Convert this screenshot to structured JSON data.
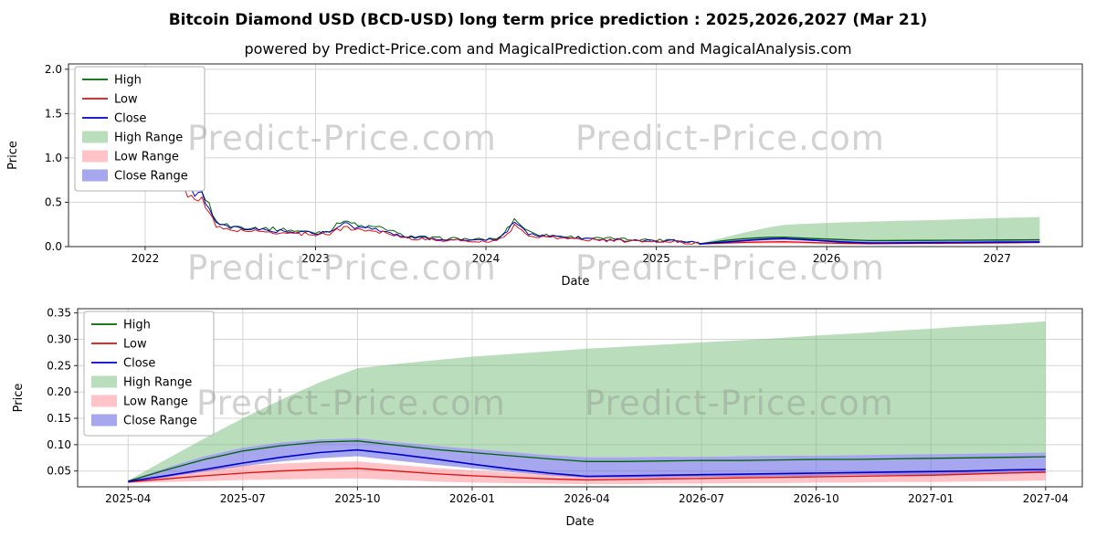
{
  "page": {
    "title": "Bitcoin Diamond USD (BCD-USD) long term price prediction : 2025,2026,2027 (Mar 21)",
    "subtitle": "powered by Predict-Price.com and MagicalPrediction.com and MagicalAnalysis.com",
    "watermark": "Predict-Price.com",
    "background": "#ffffff"
  },
  "colors": {
    "high": "#006400",
    "low": "#e01010",
    "close": "#0000cd",
    "high_range": "rgba(118,190,120,0.5)",
    "low_range": "rgba(255,145,155,0.55)",
    "close_range": "rgba(95,95,225,0.55)",
    "grid": "#d4d4d4",
    "frame": "#262626",
    "tick_text": "#000000",
    "watermark": "#8a8a8a"
  },
  "chart_data": [
    {
      "type": "line",
      "title": "",
      "xlabel": "Date",
      "ylabel": "Price",
      "xlim": [
        2021.55,
        2027.5
      ],
      "ylim": [
        0,
        2.06
      ],
      "grid": true,
      "legend_position": "upper-left",
      "legend": [
        {
          "label": "High",
          "swatch": "line",
          "color": "high"
        },
        {
          "label": "Low",
          "swatch": "line",
          "color": "low"
        },
        {
          "label": "Close",
          "swatch": "line",
          "color": "close"
        },
        {
          "label": "High Range",
          "swatch": "patch",
          "color": "high_range"
        },
        {
          "label": "Low Range",
          "swatch": "patch",
          "color": "low_range"
        },
        {
          "label": "Close Range",
          "swatch": "patch",
          "color": "close_range"
        }
      ],
      "yticks": [
        {
          "v": 0,
          "label": "0.0"
        },
        {
          "v": 0.5,
          "label": "0.5"
        },
        {
          "v": 1.0,
          "label": "1.0"
        },
        {
          "v": 1.5,
          "label": "1.5"
        },
        {
          "v": 2.0,
          "label": "2.0"
        }
      ],
      "xticks": [
        {
          "v": 2022,
          "label": "2022"
        },
        {
          "v": 2023,
          "label": "2023"
        },
        {
          "v": 2024,
          "label": "2024"
        },
        {
          "v": 2025,
          "label": "2025"
        },
        {
          "v": 2026,
          "label": "2026"
        },
        {
          "v": 2027,
          "label": "2027"
        }
      ],
      "series": {
        "hist": {
          "x": [
            2022.0,
            2022.083,
            2022.167,
            2022.25,
            2022.333,
            2022.417,
            2022.5,
            2022.583,
            2022.667,
            2022.75,
            2022.833,
            2022.917,
            2023.0,
            2023.083,
            2023.167,
            2023.25,
            2023.333,
            2023.417,
            2023.5,
            2023.583,
            2023.667,
            2023.75,
            2023.833,
            2023.917,
            2024.0,
            2024.083,
            2024.167,
            2024.25,
            2024.333,
            2024.417,
            2024.5,
            2024.583,
            2024.667,
            2024.75,
            2024.833,
            2024.917,
            2025.0,
            2025.083,
            2025.167,
            2025.25
          ],
          "high": [
            1.1,
            1.8,
            1.05,
            0.68,
            0.65,
            0.28,
            0.23,
            0.22,
            0.21,
            0.2,
            0.19,
            0.17,
            0.16,
            0.18,
            0.31,
            0.23,
            0.22,
            0.2,
            0.13,
            0.11,
            0.1,
            0.09,
            0.09,
            0.08,
            0.08,
            0.1,
            0.31,
            0.17,
            0.13,
            0.12,
            0.11,
            0.1,
            0.09,
            0.09,
            0.08,
            0.08,
            0.07,
            0.08,
            0.06,
            0.05
          ],
          "low": [
            0.9,
            1.58,
            0.85,
            0.56,
            0.55,
            0.22,
            0.19,
            0.18,
            0.17,
            0.16,
            0.155,
            0.145,
            0.14,
            0.145,
            0.22,
            0.19,
            0.18,
            0.16,
            0.11,
            0.09,
            0.08,
            0.07,
            0.07,
            0.06,
            0.06,
            0.08,
            0.23,
            0.13,
            0.11,
            0.1,
            0.09,
            0.08,
            0.07,
            0.07,
            0.06,
            0.06,
            0.055,
            0.06,
            0.045,
            0.035
          ],
          "close": [
            1.0,
            1.72,
            0.95,
            0.62,
            0.6,
            0.25,
            0.21,
            0.2,
            0.19,
            0.18,
            0.17,
            0.16,
            0.15,
            0.16,
            0.26,
            0.21,
            0.2,
            0.18,
            0.12,
            0.1,
            0.09,
            0.08,
            0.08,
            0.07,
            0.07,
            0.09,
            0.27,
            0.15,
            0.12,
            0.11,
            0.1,
            0.09,
            0.08,
            0.08,
            0.07,
            0.07,
            0.06,
            0.07,
            0.05,
            0.04
          ]
        },
        "pred": {
          "x": [
            2025.25,
            2025.333,
            2025.417,
            2025.5,
            2025.583,
            2025.667,
            2025.75,
            2025.833,
            2025.917,
            2026.0,
            2026.083,
            2026.167,
            2026.25,
            2026.333,
            2026.417,
            2026.5,
            2026.583,
            2026.667,
            2026.75,
            2026.833,
            2026.917,
            2027.0,
            2027.083,
            2027.167,
            2027.25
          ],
          "high": [
            0.031,
            0.052,
            0.072,
            0.088,
            0.098,
            0.105,
            0.107,
            0.099,
            0.091,
            0.085,
            0.079,
            0.073,
            0.068,
            0.068,
            0.069,
            0.07,
            0.07,
            0.071,
            0.072,
            0.072,
            0.073,
            0.074,
            0.075,
            0.076,
            0.077
          ],
          "low": [
            0.029,
            0.035,
            0.041,
            0.046,
            0.05,
            0.053,
            0.055,
            0.05,
            0.045,
            0.041,
            0.038,
            0.035,
            0.033,
            0.034,
            0.035,
            0.036,
            0.037,
            0.038,
            0.039,
            0.04,
            0.041,
            0.042,
            0.044,
            0.046,
            0.048
          ],
          "close": [
            0.03,
            0.041,
            0.053,
            0.065,
            0.076,
            0.085,
            0.09,
            0.082,
            0.073,
            0.063,
            0.054,
            0.046,
            0.04,
            0.041,
            0.042,
            0.043,
            0.044,
            0.045,
            0.046,
            0.047,
            0.048,
            0.049,
            0.05,
            0.052,
            0.053
          ],
          "high_top": [
            0.032,
            0.072,
            0.112,
            0.15,
            0.185,
            0.218,
            0.245,
            0.253,
            0.26,
            0.267,
            0.272,
            0.277,
            0.282,
            0.286,
            0.29,
            0.294,
            0.298,
            0.302,
            0.307,
            0.311,
            0.316,
            0.32,
            0.325,
            0.329,
            0.334
          ],
          "close_top": [
            0.032,
            0.056,
            0.078,
            0.094,
            0.104,
            0.11,
            0.112,
            0.105,
            0.098,
            0.092,
            0.086,
            0.08,
            0.076,
            0.076,
            0.077,
            0.077,
            0.078,
            0.079,
            0.079,
            0.08,
            0.081,
            0.082,
            0.083,
            0.084,
            0.085
          ],
          "close_bottom": [
            0.028,
            0.038,
            0.049,
            0.059,
            0.068,
            0.074,
            0.078,
            0.07,
            0.062,
            0.055,
            0.048,
            0.042,
            0.037,
            0.037,
            0.038,
            0.039,
            0.039,
            0.04,
            0.041,
            0.042,
            0.042,
            0.043,
            0.044,
            0.045,
            0.046
          ],
          "low_top": [
            0.031,
            0.043,
            0.053,
            0.06,
            0.064,
            0.067,
            0.068,
            0.062,
            0.056,
            0.051,
            0.047,
            0.044,
            0.041,
            0.041,
            0.042,
            0.043,
            0.044,
            0.045,
            0.045,
            0.046,
            0.047,
            0.048,
            0.049,
            0.05,
            0.051
          ],
          "low_bottom": [
            0.027,
            0.029,
            0.031,
            0.033,
            0.034,
            0.035,
            0.036,
            0.033,
            0.03,
            0.028,
            0.027,
            0.026,
            0.025,
            0.025,
            0.026,
            0.026,
            0.027,
            0.027,
            0.028,
            0.028,
            0.029,
            0.029,
            0.03,
            0.031,
            0.032
          ]
        }
      }
    },
    {
      "type": "line",
      "title": "",
      "xlabel": "Date",
      "ylabel": "Price",
      "xlim": [
        2025.14,
        2027.33
      ],
      "ylim": [
        0.02,
        0.358
      ],
      "grid": true,
      "legend_position": "upper-left",
      "legend": [
        {
          "label": "High",
          "swatch": "line",
          "color": "high"
        },
        {
          "label": "Low",
          "swatch": "line",
          "color": "low"
        },
        {
          "label": "Close",
          "swatch": "line",
          "color": "close"
        },
        {
          "label": "High Range",
          "swatch": "patch",
          "color": "high_range"
        },
        {
          "label": "Low Range",
          "swatch": "patch",
          "color": "low_range"
        },
        {
          "label": "Close Range",
          "swatch": "patch",
          "color": "close_range"
        }
      ],
      "yticks": [
        {
          "v": 0.05,
          "label": "0.05"
        },
        {
          "v": 0.1,
          "label": "0.10"
        },
        {
          "v": 0.15,
          "label": "0.15"
        },
        {
          "v": 0.2,
          "label": "0.20"
        },
        {
          "v": 0.25,
          "label": "0.25"
        },
        {
          "v": 0.3,
          "label": "0.30"
        },
        {
          "v": 0.35,
          "label": "0.35"
        }
      ],
      "xticks": [
        {
          "v": 2025.25,
          "label": "2025-04"
        },
        {
          "v": 2025.5,
          "label": "2025-07"
        },
        {
          "v": 2025.75,
          "label": "2025-10"
        },
        {
          "v": 2026.0,
          "label": "2026-01"
        },
        {
          "v": 2026.25,
          "label": "2026-04"
        },
        {
          "v": 2026.5,
          "label": "2026-07"
        },
        {
          "v": 2026.75,
          "label": "2026-10"
        },
        {
          "v": 2027.0,
          "label": "2027-01"
        },
        {
          "v": 2027.25,
          "label": "2027-04"
        }
      ],
      "series": {
        "pred": {
          "x": [
            2025.25,
            2025.333,
            2025.417,
            2025.5,
            2025.583,
            2025.667,
            2025.75,
            2025.833,
            2025.917,
            2026.0,
            2026.083,
            2026.167,
            2026.25,
            2026.333,
            2026.417,
            2026.5,
            2026.583,
            2026.667,
            2026.75,
            2026.833,
            2026.917,
            2027.0,
            2027.083,
            2027.167,
            2027.25
          ],
          "high": [
            0.031,
            0.052,
            0.072,
            0.088,
            0.098,
            0.105,
            0.107,
            0.099,
            0.091,
            0.085,
            0.079,
            0.073,
            0.068,
            0.068,
            0.069,
            0.07,
            0.07,
            0.071,
            0.072,
            0.072,
            0.073,
            0.074,
            0.075,
            0.076,
            0.077
          ],
          "low": [
            0.029,
            0.035,
            0.041,
            0.046,
            0.05,
            0.053,
            0.055,
            0.05,
            0.045,
            0.041,
            0.038,
            0.035,
            0.033,
            0.034,
            0.035,
            0.036,
            0.037,
            0.038,
            0.039,
            0.04,
            0.041,
            0.042,
            0.044,
            0.046,
            0.048
          ],
          "close": [
            0.03,
            0.041,
            0.053,
            0.065,
            0.076,
            0.085,
            0.09,
            0.082,
            0.073,
            0.063,
            0.054,
            0.046,
            0.04,
            0.041,
            0.042,
            0.043,
            0.044,
            0.045,
            0.046,
            0.047,
            0.048,
            0.049,
            0.05,
            0.052,
            0.053
          ],
          "high_top": [
            0.032,
            0.072,
            0.112,
            0.15,
            0.185,
            0.218,
            0.245,
            0.253,
            0.26,
            0.267,
            0.272,
            0.277,
            0.282,
            0.286,
            0.29,
            0.294,
            0.298,
            0.302,
            0.307,
            0.311,
            0.316,
            0.32,
            0.325,
            0.329,
            0.334
          ],
          "close_top": [
            0.032,
            0.056,
            0.078,
            0.094,
            0.104,
            0.11,
            0.112,
            0.105,
            0.098,
            0.092,
            0.086,
            0.08,
            0.076,
            0.076,
            0.077,
            0.077,
            0.078,
            0.079,
            0.079,
            0.08,
            0.081,
            0.082,
            0.083,
            0.084,
            0.085
          ],
          "close_bottom": [
            0.028,
            0.038,
            0.049,
            0.059,
            0.068,
            0.074,
            0.078,
            0.07,
            0.062,
            0.055,
            0.048,
            0.042,
            0.037,
            0.037,
            0.038,
            0.039,
            0.039,
            0.04,
            0.041,
            0.042,
            0.042,
            0.043,
            0.044,
            0.045,
            0.046
          ],
          "low_top": [
            0.031,
            0.043,
            0.053,
            0.06,
            0.064,
            0.067,
            0.068,
            0.062,
            0.056,
            0.051,
            0.047,
            0.044,
            0.041,
            0.041,
            0.042,
            0.043,
            0.044,
            0.045,
            0.045,
            0.046,
            0.047,
            0.048,
            0.049,
            0.05,
            0.051
          ],
          "low_bottom": [
            0.027,
            0.029,
            0.031,
            0.033,
            0.034,
            0.035,
            0.036,
            0.033,
            0.03,
            0.028,
            0.027,
            0.026,
            0.025,
            0.025,
            0.026,
            0.026,
            0.027,
            0.027,
            0.028,
            0.028,
            0.029,
            0.029,
            0.03,
            0.031,
            0.032
          ]
        }
      }
    }
  ]
}
